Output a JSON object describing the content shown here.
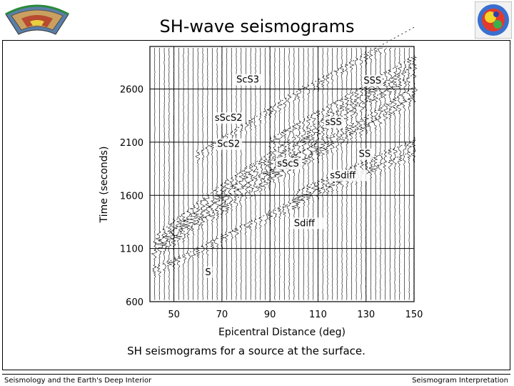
{
  "page": {
    "title": "SH-wave seismograms",
    "caption": "SH seismograms for a source at the surface.",
    "footer_left": "Seismology and the Earth's Deep Interior",
    "footer_right": "Seismogram Interpretation",
    "logo_left_icon": "earth-cross-section-icon",
    "logo_right_icon": "tomography-globe-icon"
  },
  "chart_data": {
    "type": "scatter",
    "title": "",
    "xlabel": "Epicentral Distance (deg)",
    "ylabel": "Time (seconds)",
    "xlim": [
      40,
      150
    ],
    "ylim": [
      600,
      3000
    ],
    "xticks": [
      50,
      70,
      90,
      110,
      130,
      150
    ],
    "yticks": [
      600,
      1100,
      1600,
      2100,
      2600
    ],
    "grid": true,
    "trace_distances": [
      42,
      44,
      46,
      48,
      50,
      52,
      54,
      56,
      58,
      60,
      62,
      64,
      66,
      68,
      70,
      72,
      74,
      76,
      78,
      80,
      82,
      84,
      86,
      88,
      90,
      92,
      94,
      96,
      98,
      100,
      102,
      104,
      106,
      108,
      110,
      112,
      114,
      116,
      118,
      120,
      122,
      124,
      126,
      128,
      130,
      132,
      134,
      136,
      138,
      140,
      142,
      144,
      146,
      148,
      150
    ],
    "phases": [
      {
        "name": "S",
        "label": "S",
        "x": [
          42,
          60,
          80,
          100,
          102
        ],
        "y": [
          920,
          1100,
          1330,
          1540,
          1570
        ],
        "label_at": [
          63,
          850
        ]
      },
      {
        "name": "Sdiff",
        "label": "Sdiff",
        "x": [
          100,
          120,
          150
        ],
        "y": [
          1560,
          1750,
          2020
        ],
        "label_at": [
          100,
          1310
        ]
      },
      {
        "name": "sSdiff",
        "label": "sSdiff",
        "x": [
          102,
          150
        ],
        "y": [
          1650,
          2120
        ],
        "label_at": [
          115,
          1760
        ]
      },
      {
        "name": "SS",
        "label": "SS",
        "x": [
          42,
          70,
          100,
          130,
          150
        ],
        "y": [
          1080,
          1490,
          1890,
          2260,
          2540
        ],
        "label_at": [
          127,
          1960
        ]
      },
      {
        "name": "sSS",
        "label": "sSS",
        "x": [
          42,
          70,
          100,
          130,
          150
        ],
        "y": [
          1150,
          1570,
          1970,
          2340,
          2620
        ],
        "label_at": [
          113,
          2260
        ]
      },
      {
        "name": "ScS2",
        "label": "ScS2",
        "x": [
          44,
          70,
          100,
          130,
          150
        ],
        "y": [
          1180,
          1620,
          2070,
          2480,
          2740
        ],
        "label_at": [
          68,
          2055
        ]
      },
      {
        "name": "sScS2",
        "label": "sScS2",
        "x": [
          44,
          70,
          100,
          130,
          150
        ],
        "y": [
          1250,
          1700,
          2150,
          2560,
          2820
        ],
        "label_at": [
          67,
          2300
        ]
      },
      {
        "name": "sScS",
        "label": "sScS",
        "x": [
          90,
          110
        ],
        "y": [
          1830,
          2100
        ],
        "label_at": [
          93,
          1870
        ]
      },
      {
        "name": "SSS",
        "label": "SSS",
        "x": [
          90,
          130,
          150
        ],
        "y": [
          2130,
          2640,
          2910
        ],
        "label_at": [
          129,
          2650
        ]
      },
      {
        "name": "ScS3",
        "label": "ScS3",
        "x": [
          60,
          100,
          150
        ],
        "y": [
          2000,
          2560,
          3180
        ],
        "label_at": [
          76,
          2660
        ]
      }
    ],
    "annotations": [
      {
        "text": "S",
        "x": 63,
        "y": 850
      },
      {
        "text": "Sdiff",
        "x": 100,
        "y": 1310
      },
      {
        "text": "sSdiff",
        "x": 115,
        "y": 1760
      },
      {
        "text": "SS",
        "x": 127,
        "y": 1960
      },
      {
        "text": "sScS",
        "x": 93,
        "y": 1870
      },
      {
        "text": "ScS2",
        "x": 68,
        "y": 2055
      },
      {
        "text": "sSS",
        "x": 113,
        "y": 2260
      },
      {
        "text": "sScS2",
        "x": 67,
        "y": 2300
      },
      {
        "text": "SSS",
        "x": 129,
        "y": 2650
      },
      {
        "text": "ScS3",
        "x": 76,
        "y": 2660
      }
    ]
  }
}
